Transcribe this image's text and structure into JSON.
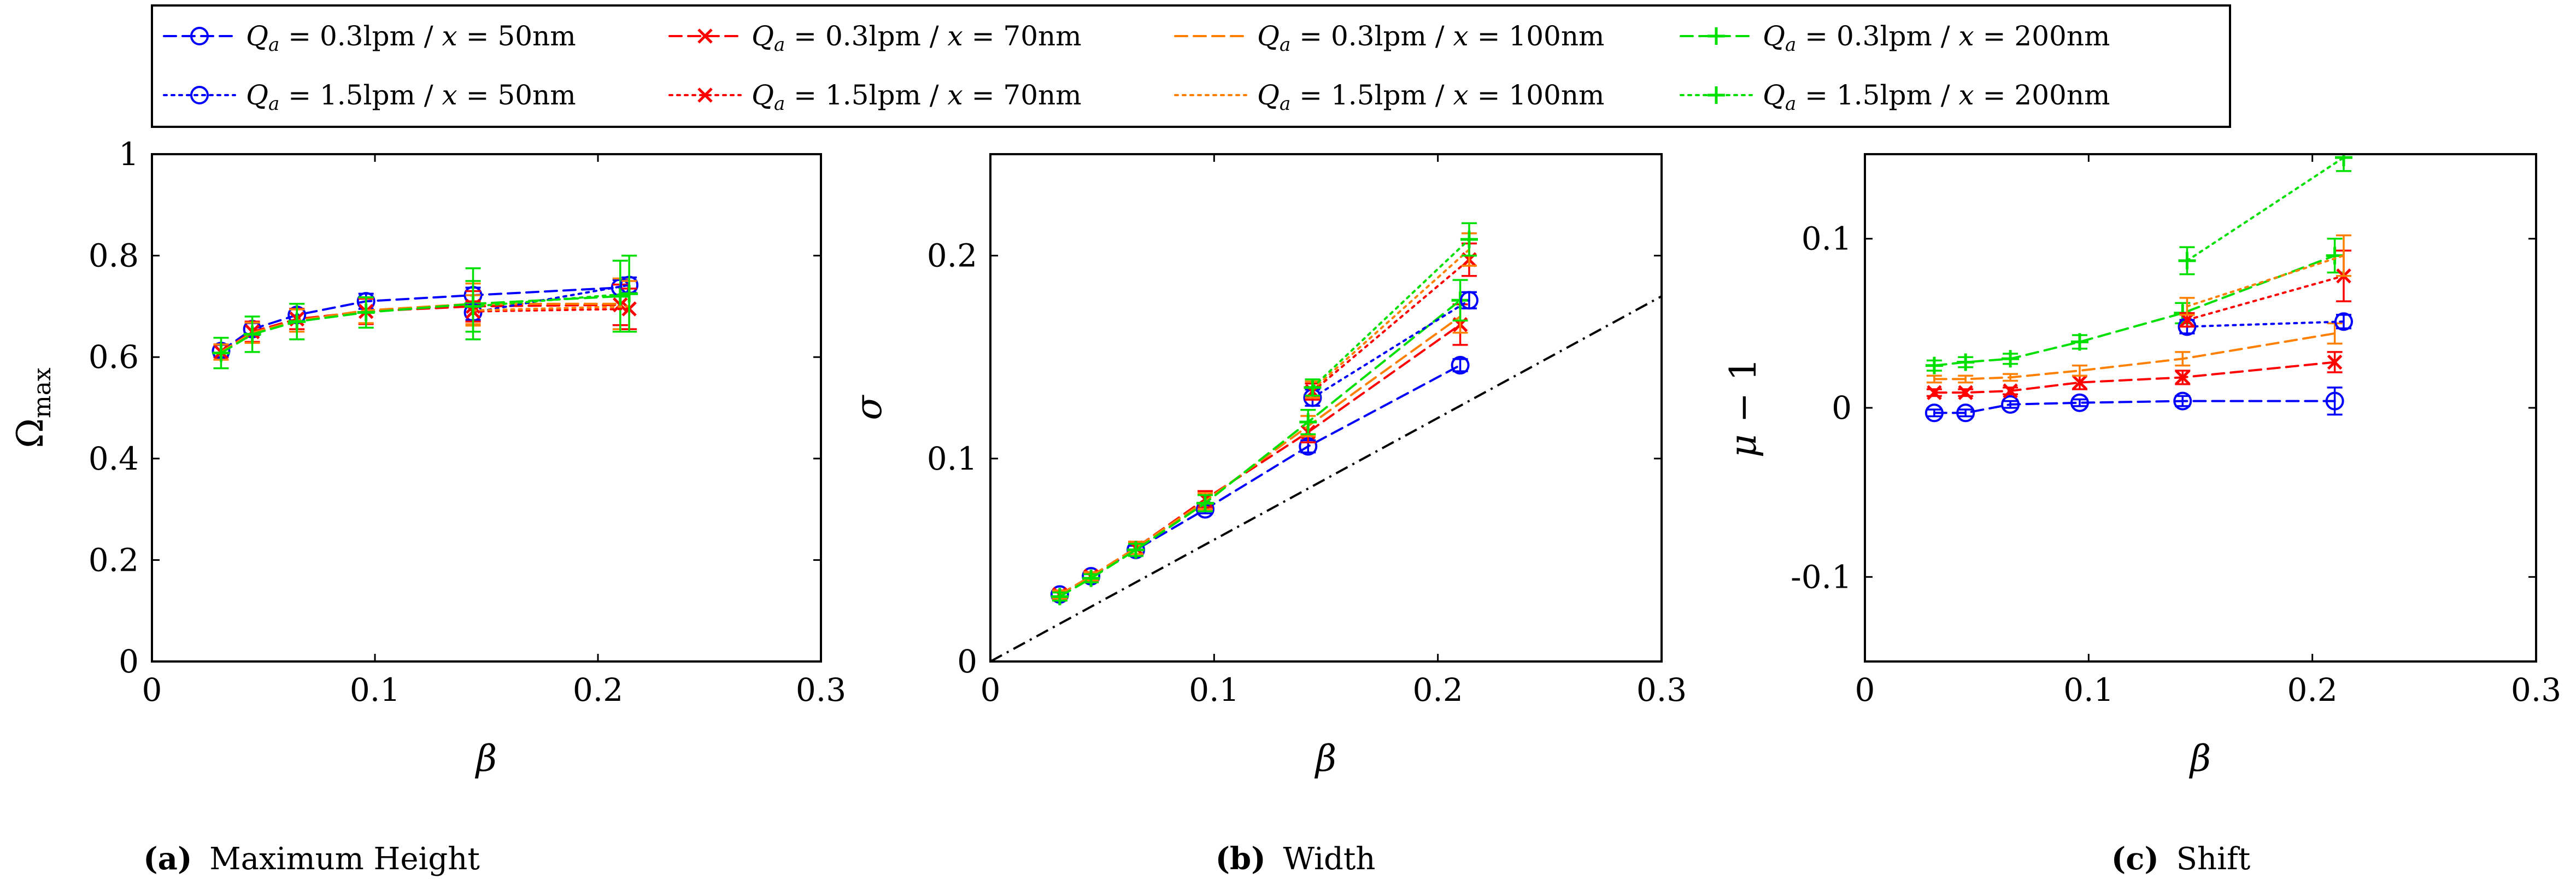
{
  "figure": {
    "legend_location": "top-center",
    "captions": [
      {
        "label": "(a)",
        "text": "Maximum Height"
      },
      {
        "label": "(b)",
        "text": "Width"
      },
      {
        "label": "(c)",
        "text": "Shift"
      }
    ]
  },
  "legend": [
    {
      "q": "0.3lpm",
      "x": "50nm",
      "text": "Qa = 0.3lpm / x = 50nm",
      "color": "#0000ff",
      "dash": "dashed",
      "marker": "circle"
    },
    {
      "q": "0.3lpm",
      "x": "70nm",
      "text": "Qa = 0.3lpm / x = 70nm",
      "color": "#ff0000",
      "dash": "dashed",
      "marker": "x"
    },
    {
      "q": "0.3lpm",
      "x": "100nm",
      "text": "Qa = 0.3lpm / x = 100nm",
      "color": "#ff8000",
      "dash": "dashed",
      "marker": "none"
    },
    {
      "q": "0.3lpm",
      "x": "200nm",
      "text": "Qa = 0.3lpm / x = 200nm",
      "color": "#00e000",
      "dash": "dashed",
      "marker": "plus"
    },
    {
      "q": "1.5lpm",
      "x": "50nm",
      "text": "Qa = 1.5lpm / x = 50nm",
      "color": "#0000ff",
      "dash": "dotted",
      "marker": "circle"
    },
    {
      "q": "1.5lpm",
      "x": "70nm",
      "text": "Qa = 1.5lpm / x = 70nm",
      "color": "#ff0000",
      "dash": "dotted",
      "marker": "x"
    },
    {
      "q": "1.5lpm",
      "x": "100nm",
      "text": "Qa = 1.5lpm / x = 100nm",
      "color": "#ff8000",
      "dash": "dotted",
      "marker": "none"
    },
    {
      "q": "1.5lpm",
      "x": "200nm",
      "text": "Qa = 1.5lpm / x = 200nm",
      "color": "#00e000",
      "dash": "dotted",
      "marker": "plus"
    }
  ],
  "chart_data": [
    {
      "type": "line",
      "title": "Maximum Height",
      "xlabel": "β",
      "ylabel": "Ωmax",
      "xlim": [
        0,
        0.3
      ],
      "ylim": [
        0,
        1
      ],
      "xticks": [
        0,
        0.1,
        0.2,
        0.3
      ],
      "xtick_labels": [
        "0",
        "0.1",
        "0.2",
        "0.3"
      ],
      "yticks": [
        0,
        0.2,
        0.4,
        0.6,
        0.8,
        1
      ],
      "ytick_labels": [
        "0",
        "0.2",
        "0.4",
        "0.6",
        "0.8",
        "1"
      ],
      "series": [
        {
          "name": "Qa = 0.3lpm / x = 50nm",
          "x": [
            0.031,
            0.045,
            0.065,
            0.096,
            0.144,
            0.21
          ],
          "y": [
            0.612,
            0.655,
            0.683,
            0.71,
            0.722,
            0.737
          ],
          "err": [
            0.012,
            0.012,
            0.012,
            0.015,
            0.015,
            0.015
          ]
        },
        {
          "name": "Qa = 0.3lpm / x = 70nm",
          "x": [
            0.031,
            0.045,
            0.065,
            0.096,
            0.144,
            0.21
          ],
          "y": [
            0.61,
            0.65,
            0.675,
            0.69,
            0.7,
            0.703
          ],
          "err": [
            0.015,
            0.02,
            0.02,
            0.025,
            0.03,
            0.04
          ]
        },
        {
          "name": "Qa = 0.3lpm / x = 100nm",
          "x": [
            0.031,
            0.045,
            0.065,
            0.096,
            0.144,
            0.21
          ],
          "y": [
            0.61,
            0.648,
            0.672,
            0.692,
            0.705,
            0.705
          ],
          "err": [
            0.015,
            0.02,
            0.022,
            0.025,
            0.04,
            0.05
          ]
        },
        {
          "name": "Qa = 0.3lpm / x = 200nm",
          "x": [
            0.031,
            0.045,
            0.065,
            0.096,
            0.144,
            0.21
          ],
          "y": [
            0.608,
            0.645,
            0.67,
            0.688,
            0.705,
            0.72
          ],
          "err": [
            0.03,
            0.035,
            0.035,
            0.03,
            0.07,
            0.07
          ]
        },
        {
          "name": "Qa = 1.5lpm / x = 50nm",
          "x": [
            0.144,
            0.214
          ],
          "y": [
            0.688,
            0.742
          ],
          "err": [
            0.015,
            0.015
          ]
        },
        {
          "name": "Qa = 1.5lpm / x = 70nm",
          "x": [
            0.144,
            0.214
          ],
          "y": [
            0.69,
            0.695
          ],
          "err": [
            0.02,
            0.04
          ]
        },
        {
          "name": "Qa = 1.5lpm / x = 100nm",
          "x": [
            0.144,
            0.214
          ],
          "y": [
            0.692,
            0.7
          ],
          "err": [
            0.03,
            0.05
          ]
        },
        {
          "name": "Qa = 1.5lpm / x = 200nm",
          "x": [
            0.144,
            0.214
          ],
          "y": [
            0.7,
            0.725
          ],
          "err": [
            0.05,
            0.075
          ]
        }
      ]
    },
    {
      "type": "line",
      "title": "Width",
      "xlabel": "β",
      "ylabel": "σ",
      "xlim": [
        0,
        0.3
      ],
      "ylim": [
        0,
        0.25
      ],
      "xticks": [
        0,
        0.1,
        0.2,
        0.3
      ],
      "xtick_labels": [
        "0",
        "0.1",
        "0.2",
        "0.3"
      ],
      "yticks": [
        0,
        0.1,
        0.2
      ],
      "ytick_labels": [
        "0",
        "0.1",
        "0.2"
      ],
      "reference_line": {
        "name": "σ = 0.6 β",
        "x": [
          0,
          0.3
        ],
        "y": [
          0,
          0.18
        ]
      },
      "series": [
        {
          "name": "Qa = 0.3lpm / x = 50nm",
          "x": [
            0.031,
            0.045,
            0.065,
            0.096,
            0.142,
            0.21
          ],
          "y": [
            0.033,
            0.042,
            0.055,
            0.075,
            0.106,
            0.146
          ],
          "err": [
            0.002,
            0.002,
            0.002,
            0.002,
            0.003,
            0.003
          ]
        },
        {
          "name": "Qa = 0.3lpm / x = 70nm",
          "x": [
            0.031,
            0.045,
            0.065,
            0.096,
            0.142,
            0.21
          ],
          "y": [
            0.033,
            0.042,
            0.056,
            0.08,
            0.113,
            0.166
          ],
          "err": [
            0.002,
            0.002,
            0.003,
            0.004,
            0.005,
            0.01
          ]
        },
        {
          "name": "Qa = 0.3lpm / x = 100nm",
          "x": [
            0.031,
            0.045,
            0.065,
            0.096,
            0.142,
            0.21
          ],
          "y": [
            0.033,
            0.042,
            0.056,
            0.079,
            0.116,
            0.17
          ],
          "err": [
            0.002,
            0.002,
            0.003,
            0.004,
            0.005,
            0.008
          ]
        },
        {
          "name": "Qa = 0.3lpm / x = 200nm",
          "x": [
            0.031,
            0.045,
            0.065,
            0.096,
            0.142,
            0.21
          ],
          "y": [
            0.032,
            0.041,
            0.055,
            0.078,
            0.118,
            0.178
          ],
          "err": [
            0.002,
            0.002,
            0.003,
            0.004,
            0.006,
            0.01
          ]
        },
        {
          "name": "Qa = 1.5lpm / x = 50nm",
          "x": [
            0.144,
            0.214
          ],
          "y": [
            0.13,
            0.178
          ],
          "err": [
            0.004,
            0.004
          ]
        },
        {
          "name": "Qa = 1.5lpm / x = 70nm",
          "x": [
            0.144,
            0.214
          ],
          "y": [
            0.133,
            0.198
          ],
          "err": [
            0.004,
            0.008
          ]
        },
        {
          "name": "Qa = 1.5lpm / x = 100nm",
          "x": [
            0.144,
            0.214
          ],
          "y": [
            0.134,
            0.203
          ],
          "err": [
            0.004,
            0.008
          ]
        },
        {
          "name": "Qa = 1.5lpm / x = 200nm",
          "x": [
            0.144,
            0.214
          ],
          "y": [
            0.135,
            0.208
          ],
          "err": [
            0.004,
            0.008
          ]
        }
      ]
    },
    {
      "type": "line",
      "title": "Shift",
      "xlabel": "β",
      "ylabel": "μ − 1",
      "xlim": [
        0,
        0.3
      ],
      "ylim": [
        -0.15,
        0.15
      ],
      "xticks": [
        0,
        0.1,
        0.2,
        0.3
      ],
      "xtick_labels": [
        "0",
        "0.1",
        "0.2",
        "0.3"
      ],
      "yticks": [
        -0.1,
        0,
        0.1
      ],
      "ytick_labels": [
        "-0.1",
        "0",
        "0.1"
      ],
      "series": [
        {
          "name": "Qa = 0.3lpm / x = 50nm",
          "x": [
            0.031,
            0.045,
            0.065,
            0.096,
            0.142,
            0.21
          ],
          "y": [
            -0.003,
            -0.003,
            0.002,
            0.003,
            0.004,
            0.004
          ],
          "err": [
            0.002,
            0.002,
            0.002,
            0.002,
            0.003,
            0.008
          ]
        },
        {
          "name": "Qa = 0.3lpm / x = 70nm",
          "x": [
            0.031,
            0.045,
            0.065,
            0.096,
            0.142,
            0.21
          ],
          "y": [
            0.009,
            0.009,
            0.01,
            0.015,
            0.018,
            0.027
          ],
          "err": [
            0.002,
            0.002,
            0.002,
            0.004,
            0.004,
            0.006
          ]
        },
        {
          "name": "Qa = 0.3lpm / x = 100nm",
          "x": [
            0.031,
            0.045,
            0.065,
            0.096,
            0.142,
            0.21
          ],
          "y": [
            0.017,
            0.017,
            0.018,
            0.022,
            0.029,
            0.044
          ],
          "err": [
            0.002,
            0.002,
            0.002,
            0.003,
            0.004,
            0.006
          ]
        },
        {
          "name": "Qa = 0.3lpm / x = 200nm",
          "x": [
            0.031,
            0.045,
            0.065,
            0.096,
            0.142,
            0.21
          ],
          "y": [
            0.025,
            0.027,
            0.029,
            0.039,
            0.056,
            0.09
          ],
          "err": [
            0.003,
            0.003,
            0.003,
            0.004,
            0.006,
            0.01
          ]
        },
        {
          "name": "Qa = 1.5lpm / x = 50nm",
          "x": [
            0.144,
            0.214
          ],
          "y": [
            0.048,
            0.051
          ],
          "err": [
            0.004,
            0.004
          ]
        },
        {
          "name": "Qa = 1.5lpm / x = 70nm",
          "x": [
            0.144,
            0.214
          ],
          "y": [
            0.052,
            0.078
          ],
          "err": [
            0.004,
            0.015
          ]
        },
        {
          "name": "Qa = 1.5lpm / x = 100nm",
          "x": [
            0.144,
            0.214
          ],
          "y": [
            0.06,
            0.09
          ],
          "err": [
            0.005,
            0.012
          ]
        },
        {
          "name": "Qa = 1.5lpm / x = 200nm",
          "x": [
            0.144,
            0.214
          ],
          "y": [
            0.087,
            0.148
          ],
          "err": [
            0.008,
            0.008
          ]
        }
      ]
    }
  ]
}
